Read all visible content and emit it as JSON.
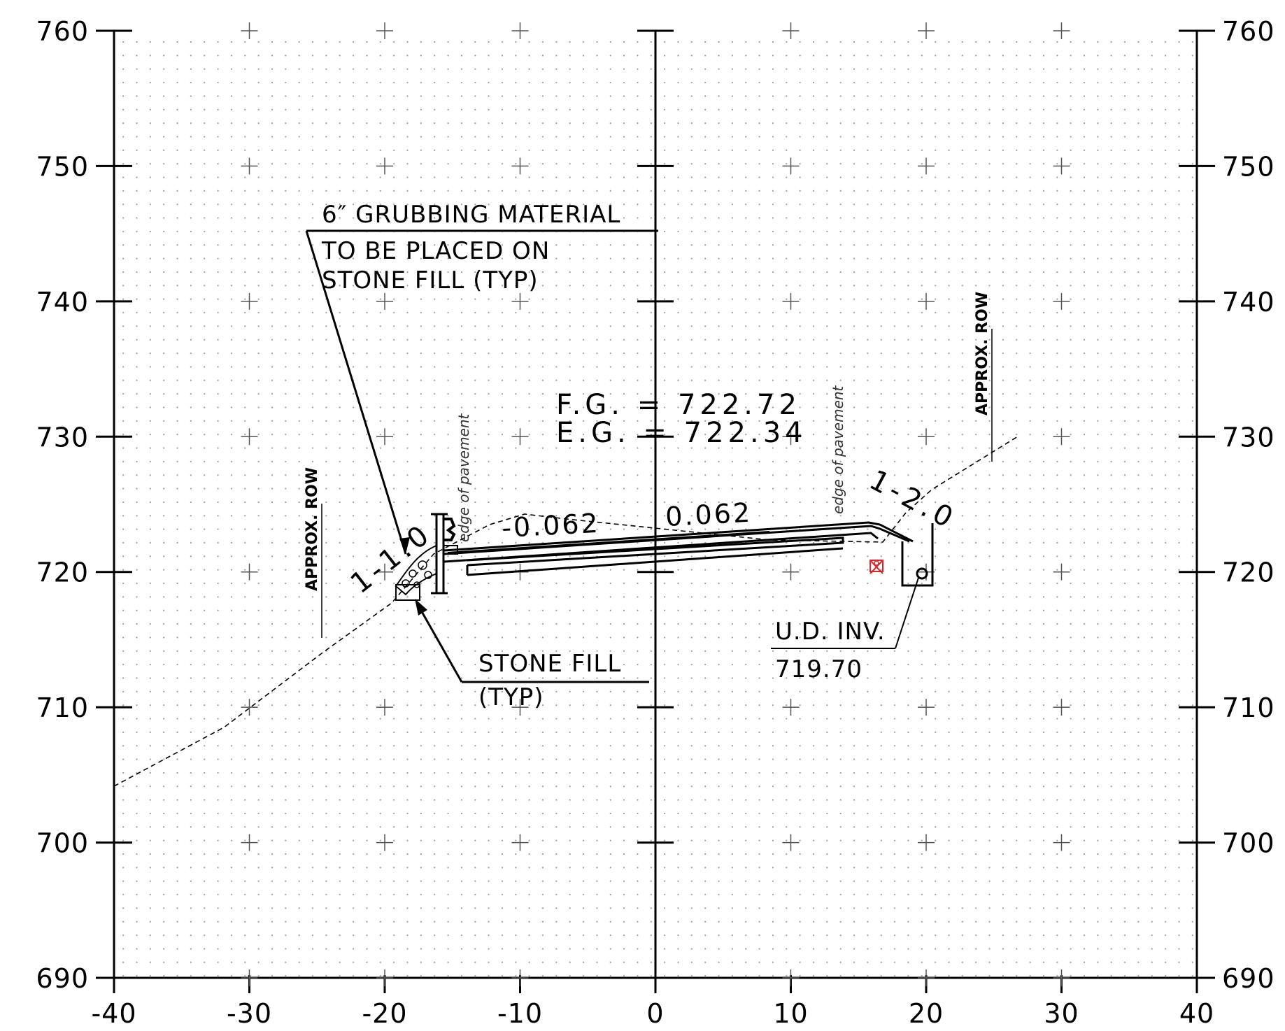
{
  "axes": {
    "x_ticks": [
      "-40",
      "-30",
      "-20",
      "-10",
      "0",
      "10",
      "20",
      "30",
      "40"
    ],
    "y_ticks": [
      "760",
      "750",
      "740",
      "730",
      "720",
      "710",
      "700",
      "690"
    ],
    "x_range": [
      -40,
      40
    ],
    "y_range": [
      690,
      760
    ]
  },
  "annotations": {
    "grubbing_line1": "6″ GRUBBING MATERIAL",
    "grubbing_line2": "TO BE PLACED ON",
    "grubbing_line3": "STONE FILL (TYP)",
    "stone_fill_line1": "STONE FILL",
    "stone_fill_line2": "(TYP)",
    "fg": "F.G. = 722.72",
    "eg": "E.G. = 722.34",
    "slope_left": "-0.062",
    "slope_right": "0.062",
    "side_slope_left": "1-1.0",
    "side_slope_right": "1-2.0",
    "edge_left": "edge of pavement",
    "edge_right": "edge of pavement",
    "row_left": "APPROX. ROW",
    "row_right": "APPROX. ROW",
    "ud_inv_line1": "U.D. INV.",
    "ud_inv_line2": "719.70"
  },
  "colors": {
    "line": "#000000",
    "grid_dot": "#9a9a9a",
    "marker": "#e0242b"
  }
}
